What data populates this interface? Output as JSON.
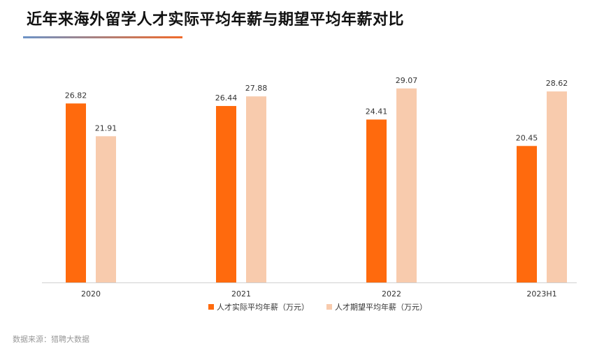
{
  "title": "近年来海外留学人才实际平均年薪与期望平均年薪对比",
  "source": "数据来源：猎聘大数据",
  "colors": {
    "actual": "#ff6a0d",
    "expected": "#f8cbad",
    "axis": "#d0d0d0",
    "label": "#333333"
  },
  "chart_data": {
    "type": "bar",
    "title": "近年来海外留学人才实际平均年薪与期望平均年薪对比",
    "xlabel": "",
    "ylabel": "",
    "ylim": [
      0,
      30
    ],
    "grid": false,
    "legend_position": "bottom",
    "categories": [
      "2020",
      "2021",
      "2022",
      "2023H1"
    ],
    "series": [
      {
        "name": "人才实际平均年薪（万元）",
        "values": [
          26.82,
          26.44,
          24.41,
          20.45
        ]
      },
      {
        "name": "人才期望平均年薪（万元）",
        "values": [
          21.91,
          27.88,
          29.07,
          28.62
        ]
      }
    ]
  }
}
